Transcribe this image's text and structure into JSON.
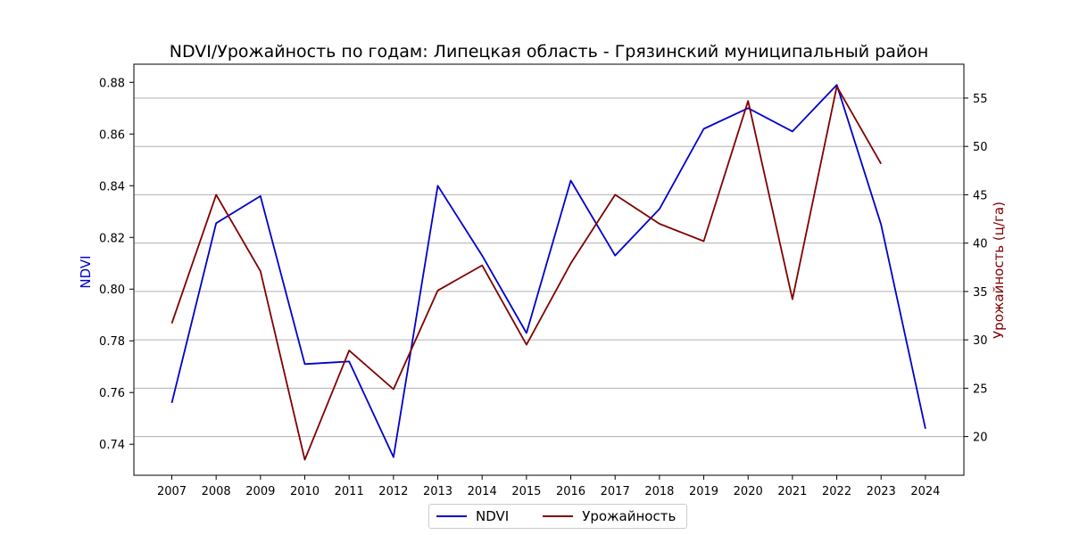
{
  "chart_data": {
    "type": "line",
    "title": "NDVI/Урожайность по годам: Липецкая область - Грязинский муниципальный район",
    "xlabel": "",
    "ylabel_left": "NDVI",
    "ylabel_right": "Урожайность (ц/га)",
    "x": [
      "2007",
      "2008",
      "2009",
      "2010",
      "2011",
      "2012",
      "2013",
      "2014",
      "2015",
      "2016",
      "2017",
      "2018",
      "2019",
      "2020",
      "2021",
      "2022",
      "2023",
      "2024"
    ],
    "y_left_ticks": [
      "0.74",
      "0.76",
      "0.78",
      "0.80",
      "0.82",
      "0.84",
      "0.86",
      "0.88"
    ],
    "y_right_ticks": [
      "20",
      "25",
      "30",
      "35",
      "40",
      "45",
      "50",
      "55"
    ],
    "ylim_left": [
      0.728,
      0.887
    ],
    "ylim_right": [
      16.0,
      58.5
    ],
    "grid": "horizontal (right axis)",
    "legend_position": "bottom-center",
    "series": [
      {
        "name": "NDVI",
        "axis": "left",
        "color": "#0000cc",
        "x": [
          "2007",
          "2008",
          "2009",
          "2010",
          "2011",
          "2012",
          "2013",
          "2014",
          "2015",
          "2016",
          "2017",
          "2018",
          "2019",
          "2020",
          "2021",
          "2022",
          "2023",
          "2024"
        ],
        "values": [
          0.756,
          0.8255,
          0.836,
          0.771,
          0.772,
          0.735,
          0.84,
          0.813,
          0.783,
          0.842,
          0.813,
          0.831,
          0.862,
          0.87,
          0.861,
          0.879,
          0.825,
          0.746
        ]
      },
      {
        "name": "Урожайность",
        "axis": "right",
        "color": "#800000",
        "x": [
          "2007",
          "2008",
          "2009",
          "2010",
          "2011",
          "2012",
          "2013",
          "2014",
          "2015",
          "2016",
          "2017",
          "2018",
          "2019",
          "2020",
          "2021",
          "2022",
          "2023"
        ],
        "values": [
          31.7,
          45.0,
          37.1,
          17.6,
          28.9,
          24.9,
          35.1,
          37.7,
          29.5,
          37.9,
          45.0,
          42.0,
          40.2,
          54.7,
          34.2,
          56.2,
          48.2
        ]
      }
    ]
  }
}
